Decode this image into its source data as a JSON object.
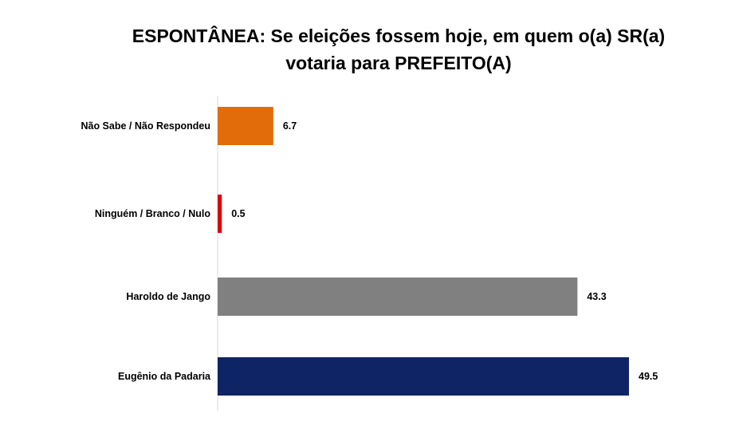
{
  "chart_data": {
    "type": "bar",
    "orientation": "horizontal",
    "title_lines": [
      "ESPONTÂNEA: Se eleições fossem hoje, em quem o(a) SR(a)",
      "votaria para PREFEITO(A)"
    ],
    "categories": [
      "Não Sabe / Não Respondeu",
      "Ninguém / Branco / Nulo",
      "Haroldo de Jango",
      "Eugênio da Padaria"
    ],
    "values": [
      6.7,
      0.5,
      43.3,
      49.5
    ],
    "value_labels": [
      "6.7",
      "0.5",
      "43.3",
      "49.5"
    ],
    "colors": [
      "#E36C0A",
      "#E00000",
      "#808080",
      "#0F2464"
    ],
    "xlim": [
      0,
      49.5
    ],
    "grid": false,
    "legend": "none"
  }
}
